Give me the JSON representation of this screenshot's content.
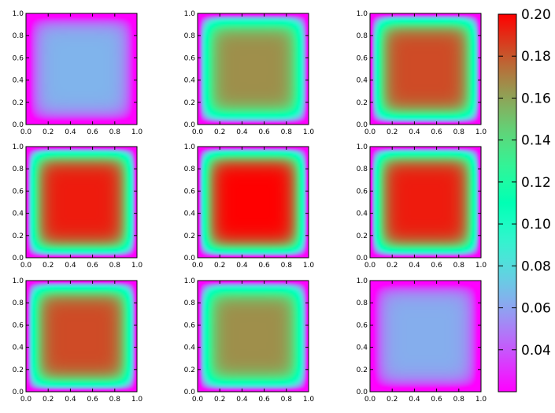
{
  "chart_data": {
    "type": "heatmap",
    "colormap": "rainbow",
    "field": "peak * (1 - |2x-1|^6) * (1 - |2y-1|^6)",
    "panels": [
      {
        "peak": 0.065
      },
      {
        "peak": 0.166
      },
      {
        "peak": 0.183
      },
      {
        "peak": 0.194
      },
      {
        "peak": 0.2
      },
      {
        "peak": 0.194
      },
      {
        "peak": 0.183
      },
      {
        "peak": 0.166
      },
      {
        "peak": 0.063
      }
    ],
    "xlim": [
      0,
      1
    ],
    "ylim": [
      0,
      1
    ],
    "x_ticks": [
      "0.0",
      "0.2",
      "0.4",
      "0.6",
      "0.8",
      "1.0"
    ],
    "y_ticks": [
      "0.0",
      "0.2",
      "0.4",
      "0.6",
      "0.8",
      "1.0"
    ],
    "colorbar": {
      "min": 0.02,
      "max": 0.2,
      "ticks": [
        "0.04",
        "0.06",
        "0.08",
        "0.10",
        "0.12",
        "0.14",
        "0.16",
        "0.18",
        "0.20"
      ],
      "tick_values": [
        0.04,
        0.06,
        0.08,
        0.1,
        0.12,
        0.14,
        0.16,
        0.18,
        0.2
      ]
    },
    "grid": false,
    "legend": "none"
  }
}
